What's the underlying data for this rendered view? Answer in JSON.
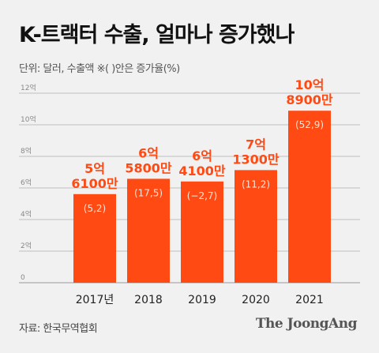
{
  "header": {
    "title": "K-트랙터 수출, 얼마나 증가했나",
    "unit_note": "단위: 달러, 수출액 ※( )안은 증가율(%)"
  },
  "footer": {
    "source": "자료: 한국무역협회",
    "brand": "The JoongAng"
  },
  "colors": {
    "bar": "#ff4a14",
    "label": "#ff4a14",
    "axis_text": "#888888",
    "grid": "#bfbfbf"
  },
  "chart_data": {
    "type": "bar",
    "title": "K-트랙터 수출, 얼마나 증가했나",
    "xlabel": "",
    "ylabel": "",
    "categories": [
      "2017년",
      "2018",
      "2019",
      "2020",
      "2021"
    ],
    "values": [
      5.61,
      6.58,
      6.41,
      7.13,
      10.89
    ],
    "value_labels": [
      [
        "5억",
        "6100만"
      ],
      [
        "6억",
        "5800만"
      ],
      [
        "6억",
        "4100만"
      ],
      [
        "7억",
        "1300만"
      ],
      [
        "10억",
        "8900만"
      ]
    ],
    "growth_labels": [
      "(5,2)",
      "(17,5)",
      "(−2,7)",
      "(11,2)",
      "(52,9)"
    ],
    "yticks": [
      0,
      2,
      4,
      6,
      8,
      10,
      12
    ],
    "ytick_labels": [
      "0",
      "2억",
      "4억",
      "6억",
      "8억",
      "10억",
      "12억"
    ],
    "ylim": [
      0,
      12
    ],
    "grid": true
  }
}
